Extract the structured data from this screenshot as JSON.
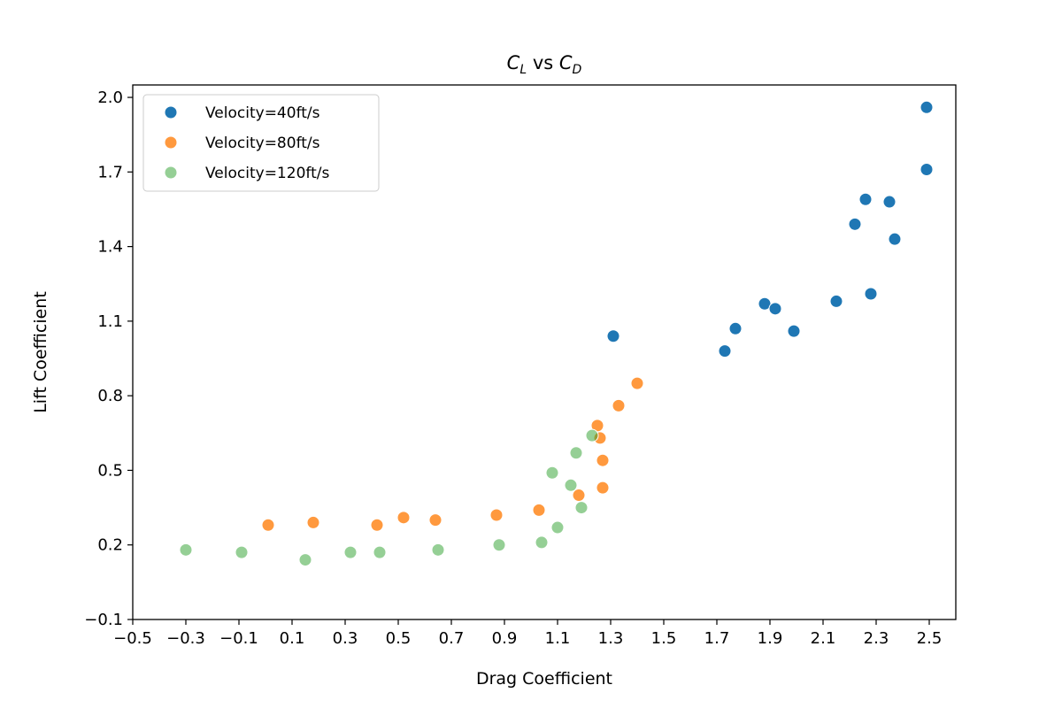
{
  "chart_data": {
    "type": "scatter",
    "title": "C_L vs C_D",
    "title_parts": {
      "sym1": "C",
      "sub1": "L",
      "mid": " vs ",
      "sym2": "C",
      "sub2": "D"
    },
    "xlabel": "Drag Coefficient",
    "ylabel": "Lift Coefficient",
    "xlim": [
      -0.5,
      2.6
    ],
    "ylim": [
      -0.1,
      2.05
    ],
    "xticks": [
      -0.5,
      -0.3,
      -0.1,
      0.1,
      0.3,
      0.5,
      0.7,
      0.9,
      1.1,
      1.3,
      1.5,
      1.7,
      1.9,
      2.1,
      2.3,
      2.5
    ],
    "yticks": [
      -0.1,
      0.2,
      0.5,
      0.8,
      1.1,
      1.4,
      1.7,
      2.0
    ],
    "xtick_labels": [
      "−0.5",
      "−0.3",
      "−0.1",
      "0.1",
      "0.3",
      "0.5",
      "0.7",
      "0.9",
      "1.1",
      "1.3",
      "1.5",
      "1.7",
      "1.9",
      "2.1",
      "2.3",
      "2.5"
    ],
    "ytick_labels": [
      "−0.1",
      "0.2",
      "0.5",
      "0.8",
      "1.1",
      "1.4",
      "1.7",
      "2.0"
    ],
    "grid": false,
    "legend_position": "top-left",
    "series": [
      {
        "name": "Velocity=40ft/s",
        "color": "#1f77b4",
        "points": [
          [
            1.31,
            1.04
          ],
          [
            1.73,
            0.98
          ],
          [
            1.77,
            1.07
          ],
          [
            1.88,
            1.17
          ],
          [
            1.92,
            1.15
          ],
          [
            1.99,
            1.06
          ],
          [
            2.15,
            1.18
          ],
          [
            2.22,
            1.49
          ],
          [
            2.26,
            1.59
          ],
          [
            2.28,
            1.21
          ],
          [
            2.35,
            1.58
          ],
          [
            2.37,
            1.43
          ],
          [
            2.49,
            1.96
          ],
          [
            2.49,
            1.71
          ]
        ]
      },
      {
        "name": "Velocity=80ft/s",
        "color": "#ff7f0e",
        "points": [
          [
            0.01,
            0.28
          ],
          [
            0.18,
            0.29
          ],
          [
            0.42,
            0.28
          ],
          [
            0.52,
            0.31
          ],
          [
            0.64,
            0.3
          ],
          [
            0.87,
            0.32
          ],
          [
            1.03,
            0.34
          ],
          [
            1.18,
            0.4
          ],
          [
            1.25,
            0.68
          ],
          [
            1.26,
            0.63
          ],
          [
            1.27,
            0.54
          ],
          [
            1.27,
            0.43
          ],
          [
            1.33,
            0.76
          ],
          [
            1.4,
            0.85
          ]
        ]
      },
      {
        "name": "Velocity=120ft/s",
        "color": "#2ca02c",
        "points": [
          [
            -0.3,
            0.18
          ],
          [
            -0.09,
            0.17
          ],
          [
            0.15,
            0.14
          ],
          [
            0.32,
            0.17
          ],
          [
            0.43,
            0.17
          ],
          [
            0.65,
            0.18
          ],
          [
            0.88,
            0.2
          ],
          [
            1.04,
            0.21
          ],
          [
            1.08,
            0.49
          ],
          [
            1.1,
            0.27
          ],
          [
            1.15,
            0.44
          ],
          [
            1.17,
            0.57
          ],
          [
            1.19,
            0.35
          ],
          [
            1.23,
            0.64
          ]
        ]
      }
    ]
  }
}
